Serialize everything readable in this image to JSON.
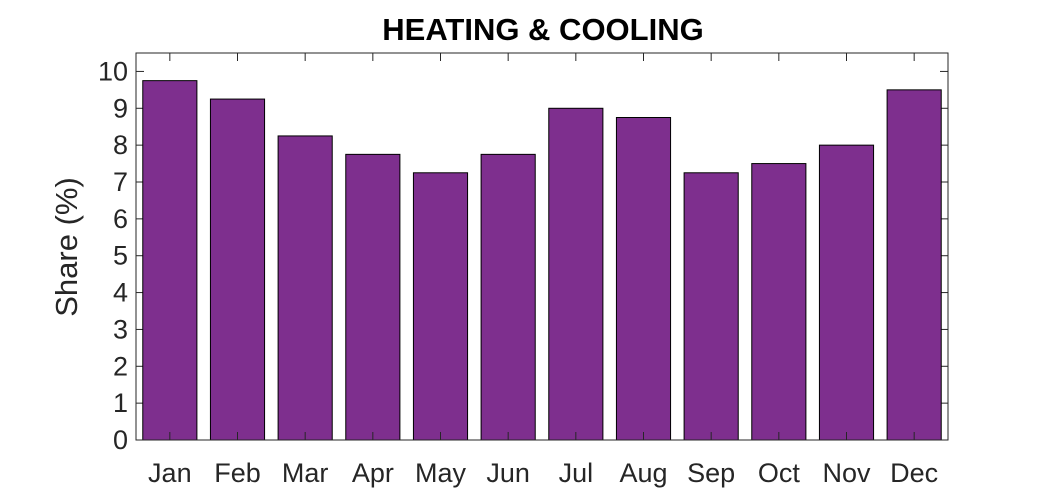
{
  "chart_data": {
    "type": "bar",
    "title": "HEATING & COOLING",
    "xlabel": "",
    "ylabel": "Share (%)",
    "categories": [
      "Jan",
      "Feb",
      "Mar",
      "Apr",
      "May",
      "Jun",
      "Jul",
      "Aug",
      "Sep",
      "Oct",
      "Nov",
      "Dec"
    ],
    "values": [
      9.75,
      9.25,
      8.25,
      7.75,
      7.25,
      7.75,
      9.0,
      8.75,
      7.25,
      7.5,
      8.0,
      9.5
    ],
    "ylim": [
      0,
      10.5
    ],
    "yticks": [
      "0",
      "1",
      "2",
      "3",
      "4",
      "5",
      "6",
      "7",
      "8",
      "9",
      "10"
    ],
    "grid": false,
    "legend": "none",
    "bar_color": "#7e2f8e",
    "edge_color": "#000000"
  }
}
